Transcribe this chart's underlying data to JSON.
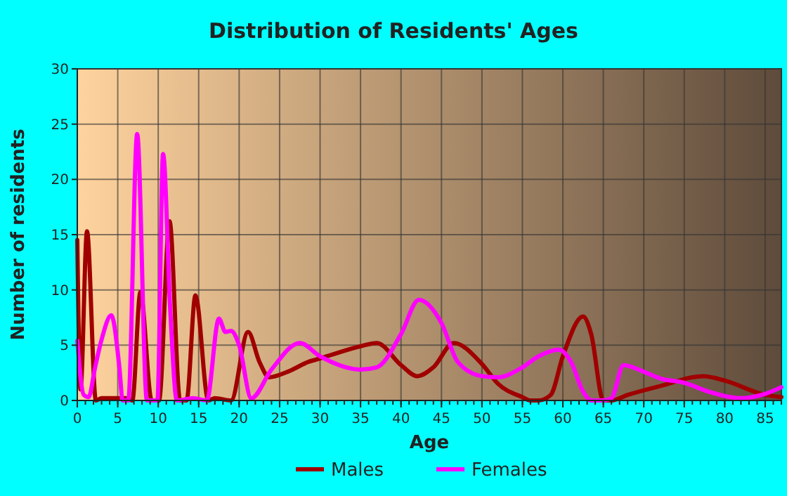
{
  "chart_data": {
    "type": "line",
    "title": "Distribution of Residents' Ages",
    "xlabel": "Age",
    "ylabel": "Number of residents",
    "xlim": [
      0,
      87
    ],
    "ylim": [
      0,
      30
    ],
    "xticks": [
      0,
      5,
      10,
      15,
      20,
      25,
      30,
      35,
      40,
      45,
      50,
      55,
      60,
      65,
      70,
      75,
      80,
      85
    ],
    "yticks": [
      0,
      5,
      10,
      15,
      20,
      25,
      30
    ],
    "grid": true,
    "legend": "bottom",
    "marker": "none",
    "line_style": "solid",
    "series": [
      {
        "name": "Males",
        "color": "#a00000",
        "x": [
          0,
          0.4,
          1.2,
          2.3,
          3,
          6,
          6.8,
          7.8,
          9.2,
          10.1,
          11.4,
          12.7,
          13.5,
          14.6,
          16.2,
          17,
          19,
          21.1,
          22.5,
          23.7,
          26,
          28.6,
          30,
          35,
          37,
          40,
          42,
          44,
          46.5,
          50,
          52,
          55,
          56,
          57,
          58.5,
          60,
          62.5,
          63.5,
          65,
          66,
          68,
          72,
          77.4,
          80,
          85,
          87
        ],
        "values": [
          14.5,
          1,
          15.3,
          0,
          0.2,
          0.2,
          0,
          9.8,
          0,
          0,
          16.2,
          0,
          0,
          9.5,
          0,
          0.2,
          0,
          6.2,
          3.5,
          2.1,
          2.6,
          3.5,
          3.8,
          4.9,
          5.2,
          3.2,
          2.2,
          3,
          5.2,
          3.3,
          1.5,
          0.3,
          0,
          0,
          0.5,
          4,
          7.6,
          6,
          0,
          0,
          0.5,
          1.3,
          2.2,
          1.8,
          0.5,
          0.3
        ]
      },
      {
        "name": "Females",
        "color": "#ff00ff",
        "x": [
          0,
          0.8,
          1.4,
          2.2,
          3,
          4.2,
          5.2,
          5.6,
          6.3,
          7.4,
          8.6,
          9.2,
          9.9,
          10.6,
          11.5,
          12.3,
          14.3,
          16,
          17.5,
          18.3,
          19,
          20,
          21.5,
          24,
          27.5,
          30,
          35,
          37,
          40,
          42.2,
          45,
          47,
          50,
          52,
          55,
          57,
          59.5,
          61,
          62.5,
          63.5,
          65,
          66,
          67.5,
          70,
          72,
          75,
          78,
          82,
          85,
          87
        ],
        "values": [
          5.4,
          0.5,
          0.3,
          3,
          5.5,
          7.7,
          3,
          0,
          0,
          24.1,
          0,
          0,
          0,
          22.3,
          8,
          0,
          0.2,
          0,
          7.4,
          6.2,
          6.3,
          5,
          0.2,
          2.8,
          5.2,
          4,
          2.8,
          3,
          6,
          9.1,
          7,
          3.5,
          2.2,
          2.1,
          3,
          4,
          4.6,
          3.5,
          0.8,
          0,
          0,
          0.2,
          3.2,
          2.6,
          2,
          1.6,
          0.8,
          0.2,
          0.6,
          1.2
        ]
      }
    ]
  }
}
